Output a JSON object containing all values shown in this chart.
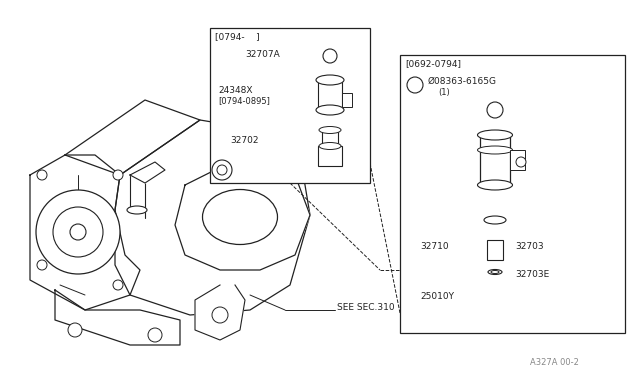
{
  "bg_color": "#ffffff",
  "line_color": "#222222",
  "text_color": "#222222",
  "diagram_code": "A327A 00-2",
  "see_sec": "SEE SEC.310",
  "box1_label": "[0794-    ]",
  "box2_label": "[0692-0794]",
  "part_32707A": "32707A",
  "part_24348X": "24348X",
  "part_0794_0895": "[0794-0895]",
  "part_32702": "32702",
  "part_S08363": "Ø08363-6165G",
  "part_S08363_1": "(1)",
  "part_32710": "32710",
  "part_32703": "32703",
  "part_32703E": "32703E",
  "part_25010Y": "25010Y"
}
